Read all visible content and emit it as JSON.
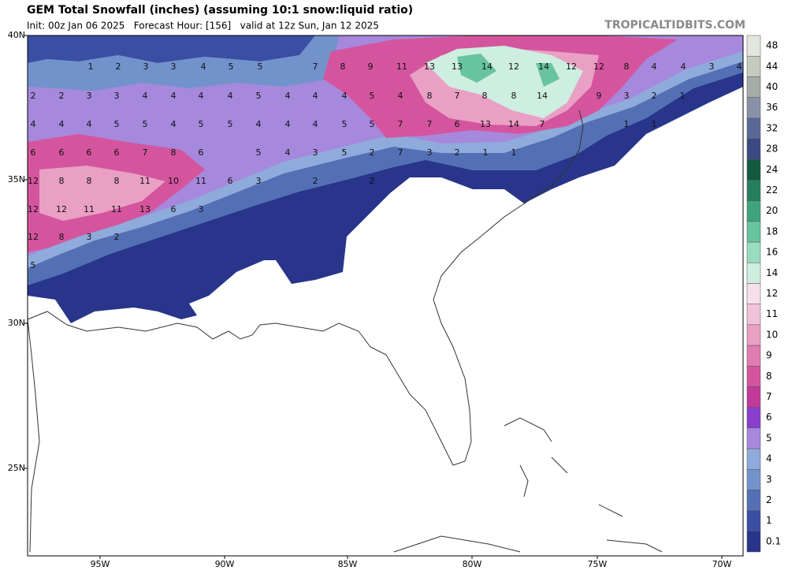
{
  "header": {
    "title": "GEM Total Snowfall (inches) (assuming 10:1 snow:liquid ratio)",
    "subtitle": "Init: 00z Jan 06 2025   Forecast Hour: [156]   valid at 12z Sun, Jan 12 2025",
    "site": "TROPICALTIDBITS.COM"
  },
  "lat_labels": [
    "40N",
    "35N",
    "30N",
    "25N"
  ],
  "lon_labels": [
    "95W",
    "90W",
    "85W",
    "80W",
    "75W",
    "70W"
  ],
  "colorbar": {
    "levels": [
      0.1,
      1,
      2,
      3,
      4,
      5,
      6,
      7,
      8,
      9,
      10,
      11,
      12,
      14,
      16,
      18,
      20,
      22,
      24,
      28,
      32,
      36,
      40,
      44,
      48
    ],
    "colors": [
      "#28358a",
      "#3a4fa3",
      "#5470b5",
      "#7292cb",
      "#8fabdb",
      "#a688dc",
      "#8a3fcc",
      "#c03a9a",
      "#d4559e",
      "#e07cb0",
      "#e9a0c4",
      "#f1c3da",
      "#f6e0ec",
      "#cdeee0",
      "#9adcc0",
      "#67c49f",
      "#3fa47e",
      "#257f5f",
      "#125a40",
      "#3b4983",
      "#5a6898",
      "#8792a8",
      "#a6ada8",
      "#c6cbc0",
      "#e2e6dc"
    ]
  },
  "map_labels": [
    1,
    2,
    3,
    3,
    4,
    5,
    5,
    7,
    8,
    9,
    11,
    13,
    13,
    14,
    12,
    14,
    12,
    12,
    8,
    4,
    4,
    3,
    4,
    2,
    2,
    3,
    3,
    4,
    4,
    4,
    4,
    5,
    4,
    4,
    4,
    5,
    4,
    8,
    7,
    8,
    8,
    14,
    9,
    3,
    2,
    1,
    4,
    4,
    4,
    5,
    5,
    4,
    5,
    5,
    4,
    4,
    4,
    5,
    5,
    7,
    7,
    6,
    13,
    14,
    7,
    1,
    1,
    6,
    6,
    6,
    6,
    7,
    8,
    6,
    5,
    4,
    3,
    5,
    2,
    7,
    3,
    2,
    1,
    1,
    12,
    8,
    8,
    8,
    11,
    10,
    11,
    6,
    3,
    2,
    2,
    12,
    12,
    11,
    11,
    13,
    6,
    3,
    12,
    8,
    3,
    2,
    5
  ]
}
